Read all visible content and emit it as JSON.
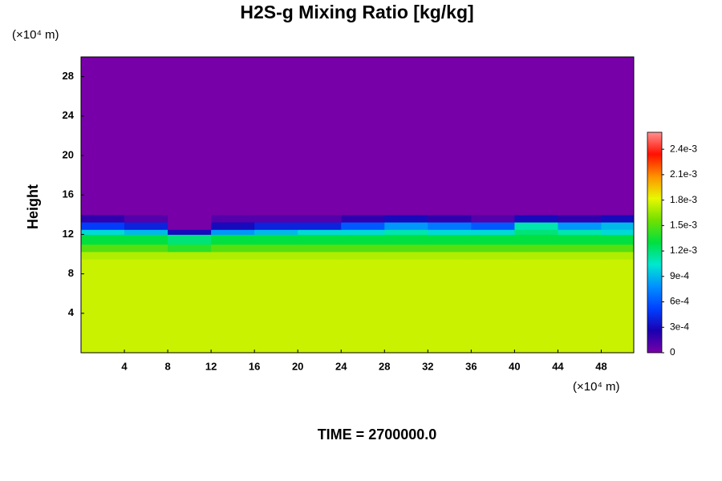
{
  "chart_data": {
    "type": "heatmap",
    "title": "H2S-g Mixing Ratio [kg/kg]",
    "y_label": "Height",
    "x_unit": "(×10⁴ m)",
    "y_unit": "(×10⁴ m)",
    "footer": "TIME = 2700000.0",
    "xlim": [
      0,
      51
    ],
    "ylim": [
      0,
      30
    ],
    "xticks": [
      4,
      8,
      12,
      16,
      20,
      24,
      28,
      32,
      36,
      40,
      44,
      48
    ],
    "yticks": [
      4,
      8,
      12,
      16,
      20,
      24,
      28
    ],
    "x_edges": [
      0,
      4,
      8,
      12,
      16,
      20,
      24,
      28,
      32,
      36,
      40,
      44,
      48,
      51
    ],
    "y_edges": [
      0,
      9.5,
      10.25,
      11,
      12,
      12.5,
      13.25,
      14,
      30
    ],
    "z": [
      [
        0.00175,
        0.00175,
        0.00175,
        0.00175,
        0.00175,
        0.00175,
        0.00175,
        0.00175,
        0.00175,
        0.00175,
        0.00175,
        0.00175,
        0.00175
      ],
      [
        0.0017,
        0.0017,
        0.0017,
        0.0017,
        0.0017,
        0.0017,
        0.0017,
        0.0017,
        0.0017,
        0.0017,
        0.0017,
        0.0017,
        0.0017
      ],
      [
        0.0015,
        0.0015,
        0.0014,
        0.0015,
        0.0015,
        0.0015,
        0.0015,
        0.0015,
        0.0015,
        0.0015,
        0.0015,
        0.0015,
        0.0015
      ],
      [
        0.0013,
        0.0013,
        0.0012,
        0.0013,
        0.0013,
        0.0013,
        0.0013,
        0.0013,
        0.0013,
        0.0013,
        0.0013,
        0.0013,
        0.0013
      ],
      [
        0.001,
        0.0009,
        0.0003,
        0.0008,
        0.0009,
        0.001,
        0.001,
        0.0011,
        0.001,
        0.001,
        0.0012,
        0.0011,
        0.001
      ],
      [
        0.0005,
        0.0004,
        0,
        0.0003,
        0.0004,
        0.0004,
        0.0006,
        0.0008,
        0.0007,
        0.0006,
        0.0011,
        0.0008,
        0.0009
      ],
      [
        0.0002,
        0.0001,
        0,
        0.0001,
        0.0001,
        0.0001,
        0.0002,
        0.0003,
        0.0002,
        0.0001,
        0.0003,
        0.0002,
        0.0003
      ],
      [
        0,
        0,
        0,
        0,
        0,
        0,
        0,
        0,
        0,
        0,
        0,
        0,
        0
      ]
    ],
    "clim": [
      0,
      0.0026
    ],
    "cticks": [
      0,
      {
        "value": 0.0003,
        "label": "3e-4"
      },
      {
        "value": 0.0006,
        "label": "6e-4"
      },
      {
        "value": 0.0009,
        "label": "9e-4"
      },
      {
        "value": 0.0012,
        "label": "1.2e-3"
      },
      {
        "value": 0.0015,
        "label": "1.5e-3"
      },
      {
        "value": 0.0018,
        "label": "1.8e-3"
      },
      {
        "value": 0.0021,
        "label": "2.1e-3"
      },
      {
        "value": 0.0024,
        "label": "2.4e-3"
      }
    ],
    "colormap": [
      "#7800a8",
      "#1a00b0",
      "#0040ff",
      "#0090ff",
      "#00e8d0",
      "#00e040",
      "#70e000",
      "#e8f800",
      "#ff9000",
      "#ff1000",
      "#ff9090"
    ]
  }
}
